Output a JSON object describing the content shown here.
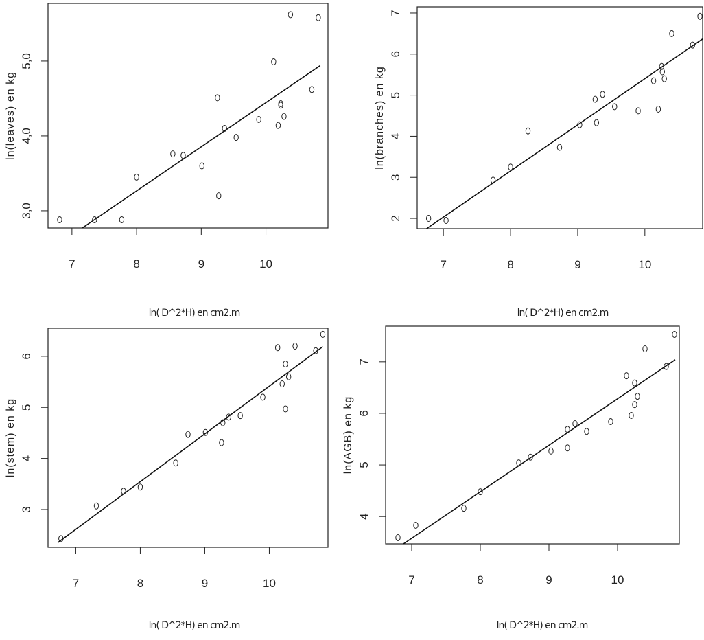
{
  "chart_data": [
    {
      "type": "scatter",
      "xlabel": "ln( D^2*H) en cm2.m",
      "ylabel": "ln(leaves) en kg",
      "xlim": [
        6.63,
        10.96
      ],
      "ylim": [
        2.77,
        5.77
      ],
      "xticks": [
        7,
        8,
        9,
        10
      ],
      "yticks": [
        {
          "value": 3,
          "label": "3,0"
        },
        {
          "value": 4,
          "label": "4,0"
        },
        {
          "value": 5,
          "label": "5,0"
        }
      ],
      "points": {
        "x": [
          6.81,
          7.35,
          7.77,
          8.0,
          8.56,
          8.72,
          9.01,
          9.25,
          9.27,
          9.36,
          9.54,
          9.89,
          10.12,
          10.19,
          10.23,
          10.23,
          10.28,
          10.38,
          10.71,
          10.81
        ],
        "y": [
          2.88,
          2.88,
          2.88,
          3.45,
          3.76,
          3.74,
          3.6,
          4.51,
          3.2,
          4.1,
          3.98,
          4.22,
          4.99,
          4.14,
          4.43,
          4.41,
          4.26,
          5.62,
          4.62,
          5.58
        ]
      },
      "fit": {
        "x": [
          7.16,
          10.84
        ],
        "y": [
          2.77,
          4.94
        ]
      }
    },
    {
      "type": "scatter",
      "xlabel": "ln( D^2*H) en cm2.m",
      "ylabel": "ln(branches) en kg",
      "xlim": [
        6.61,
        10.86
      ],
      "ylim": [
        1.75,
        7.15
      ],
      "xticks": [
        7,
        8,
        9,
        10
      ],
      "yticks": [
        2,
        3,
        4,
        5,
        6,
        7
      ],
      "points": {
        "x": [
          6.78,
          7.04,
          7.74,
          8.0,
          8.26,
          8.73,
          9.03,
          9.26,
          9.28,
          9.37,
          9.55,
          9.9,
          10.13,
          10.2,
          10.25,
          10.26,
          10.29,
          10.4,
          10.71,
          10.82
        ],
        "y": [
          2.0,
          1.95,
          2.93,
          3.25,
          4.13,
          3.73,
          4.28,
          4.9,
          4.33,
          5.02,
          4.72,
          4.62,
          5.35,
          4.66,
          5.7,
          5.57,
          5.4,
          6.5,
          6.22,
          6.92
        ]
      },
      "fit": {
        "x": [
          6.75,
          10.86
        ],
        "y": [
          1.75,
          6.37
        ]
      }
    },
    {
      "type": "scatter",
      "xlabel": "ln( D^2*H) en cm2.m",
      "ylabel": "ln(stem) en kg",
      "xlim": [
        6.57,
        10.91
      ],
      "ylim": [
        2.26,
        6.55
      ],
      "xticks": [
        7,
        8,
        9,
        10
      ],
      "yticks": [
        3,
        4,
        5,
        6
      ],
      "points": {
        "x": [
          6.77,
          7.32,
          7.74,
          8.0,
          8.55,
          8.74,
          9.01,
          9.26,
          9.28,
          9.37,
          9.55,
          9.9,
          10.13,
          10.2,
          10.25,
          10.25,
          10.3,
          10.4,
          10.72,
          10.83
        ],
        "y": [
          2.43,
          3.07,
          3.36,
          3.44,
          3.91,
          4.47,
          4.51,
          4.31,
          4.7,
          4.81,
          4.84,
          5.2,
          6.17,
          5.46,
          5.85,
          4.97,
          5.6,
          6.2,
          6.11,
          6.43
        ]
      },
      "fit": {
        "x": [
          6.72,
          10.83
        ],
        "y": [
          2.35,
          6.19
        ]
      }
    },
    {
      "type": "scatter",
      "xlabel": "ln( D^2*H) en cm2.m",
      "ylabel": "ln(AGB) en kg",
      "xlim": [
        6.62,
        10.9
      ],
      "ylim": [
        3.47,
        7.69
      ],
      "xticks": [
        7,
        8,
        9,
        10
      ],
      "yticks": [
        4,
        5,
        6,
        7
      ],
      "points": {
        "x": [
          6.8,
          7.06,
          7.76,
          8.0,
          8.56,
          8.73,
          9.03,
          9.27,
          9.27,
          9.38,
          9.55,
          9.9,
          10.13,
          10.2,
          10.25,
          10.25,
          10.29,
          10.4,
          10.71,
          10.83
        ],
        "y": [
          3.59,
          3.83,
          4.16,
          4.48,
          5.04,
          5.15,
          5.27,
          5.33,
          5.69,
          5.8,
          5.65,
          5.84,
          6.73,
          5.96,
          6.59,
          6.17,
          6.33,
          7.25,
          6.91,
          7.53
        ]
      },
      "fit": {
        "x": [
          6.88,
          10.84
        ],
        "y": [
          3.47,
          7.04
        ]
      }
    }
  ]
}
